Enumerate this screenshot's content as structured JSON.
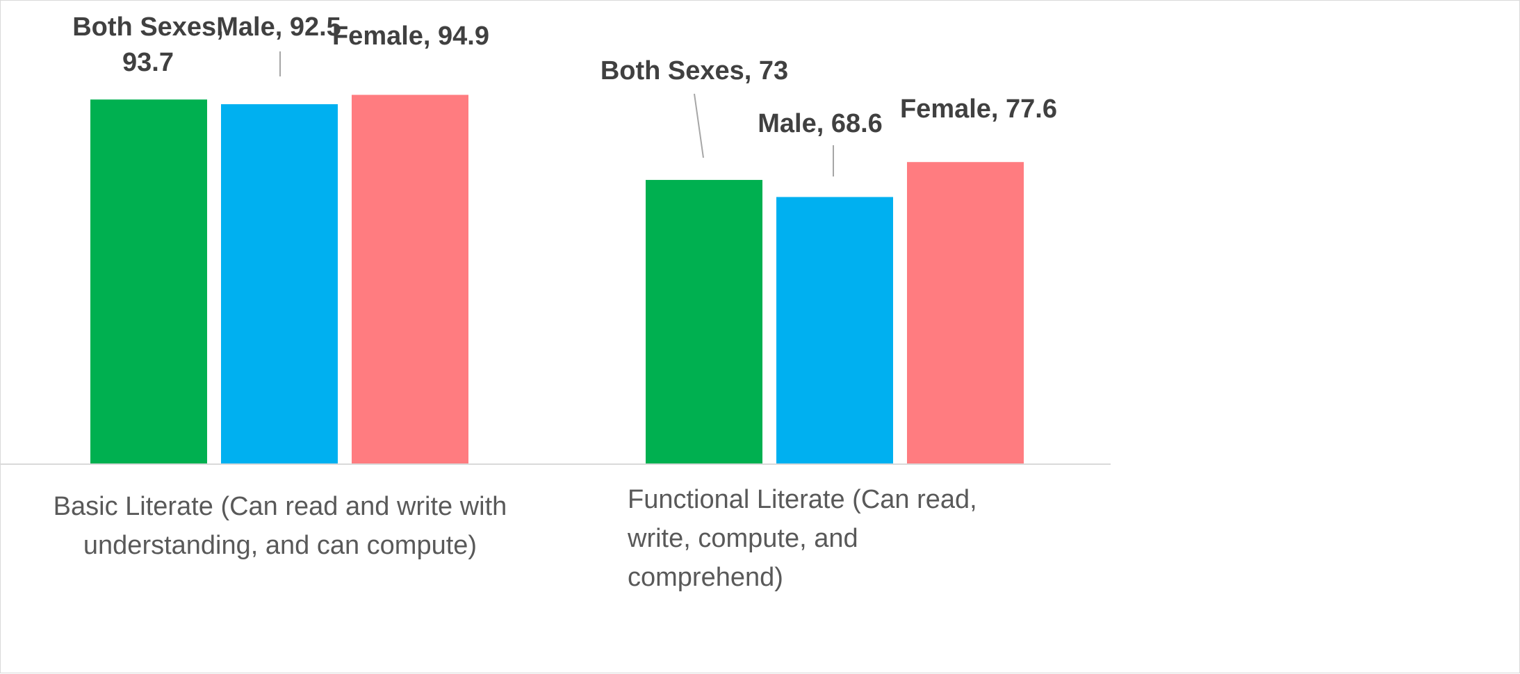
{
  "chart_data": {
    "type": "bar",
    "categories": [
      "Basic Literate (Can read and write with understanding, and can compute)",
      "Functional Literate (Can read, write, compute, and comprehend)"
    ],
    "series": [
      {
        "name": "Both Sexes",
        "values": [
          93.7,
          73
        ],
        "color": "#00b050"
      },
      {
        "name": "Male",
        "values": [
          92.5,
          68.6
        ],
        "color": "#00b0f0"
      },
      {
        "name": "Female",
        "values": [
          94.9,
          77.6
        ],
        "color": "#ff7c80"
      }
    ],
    "data_labels": [
      [
        "Both Sexes, 93.7",
        "Male, 92.5",
        "Female, 94.9"
      ],
      [
        "Both Sexes, 73",
        "Male, 68.6",
        "Female, 77.6"
      ]
    ],
    "category_label_lines": [
      [
        "Basic Literate (Can read and write with",
        "understanding, and can compute)"
      ],
      [
        "Functional Literate (Can read,",
        "write, compute, and",
        "comprehend)"
      ]
    ],
    "ylim": [
      0,
      100
    ],
    "legend": "none",
    "grid": false
  }
}
